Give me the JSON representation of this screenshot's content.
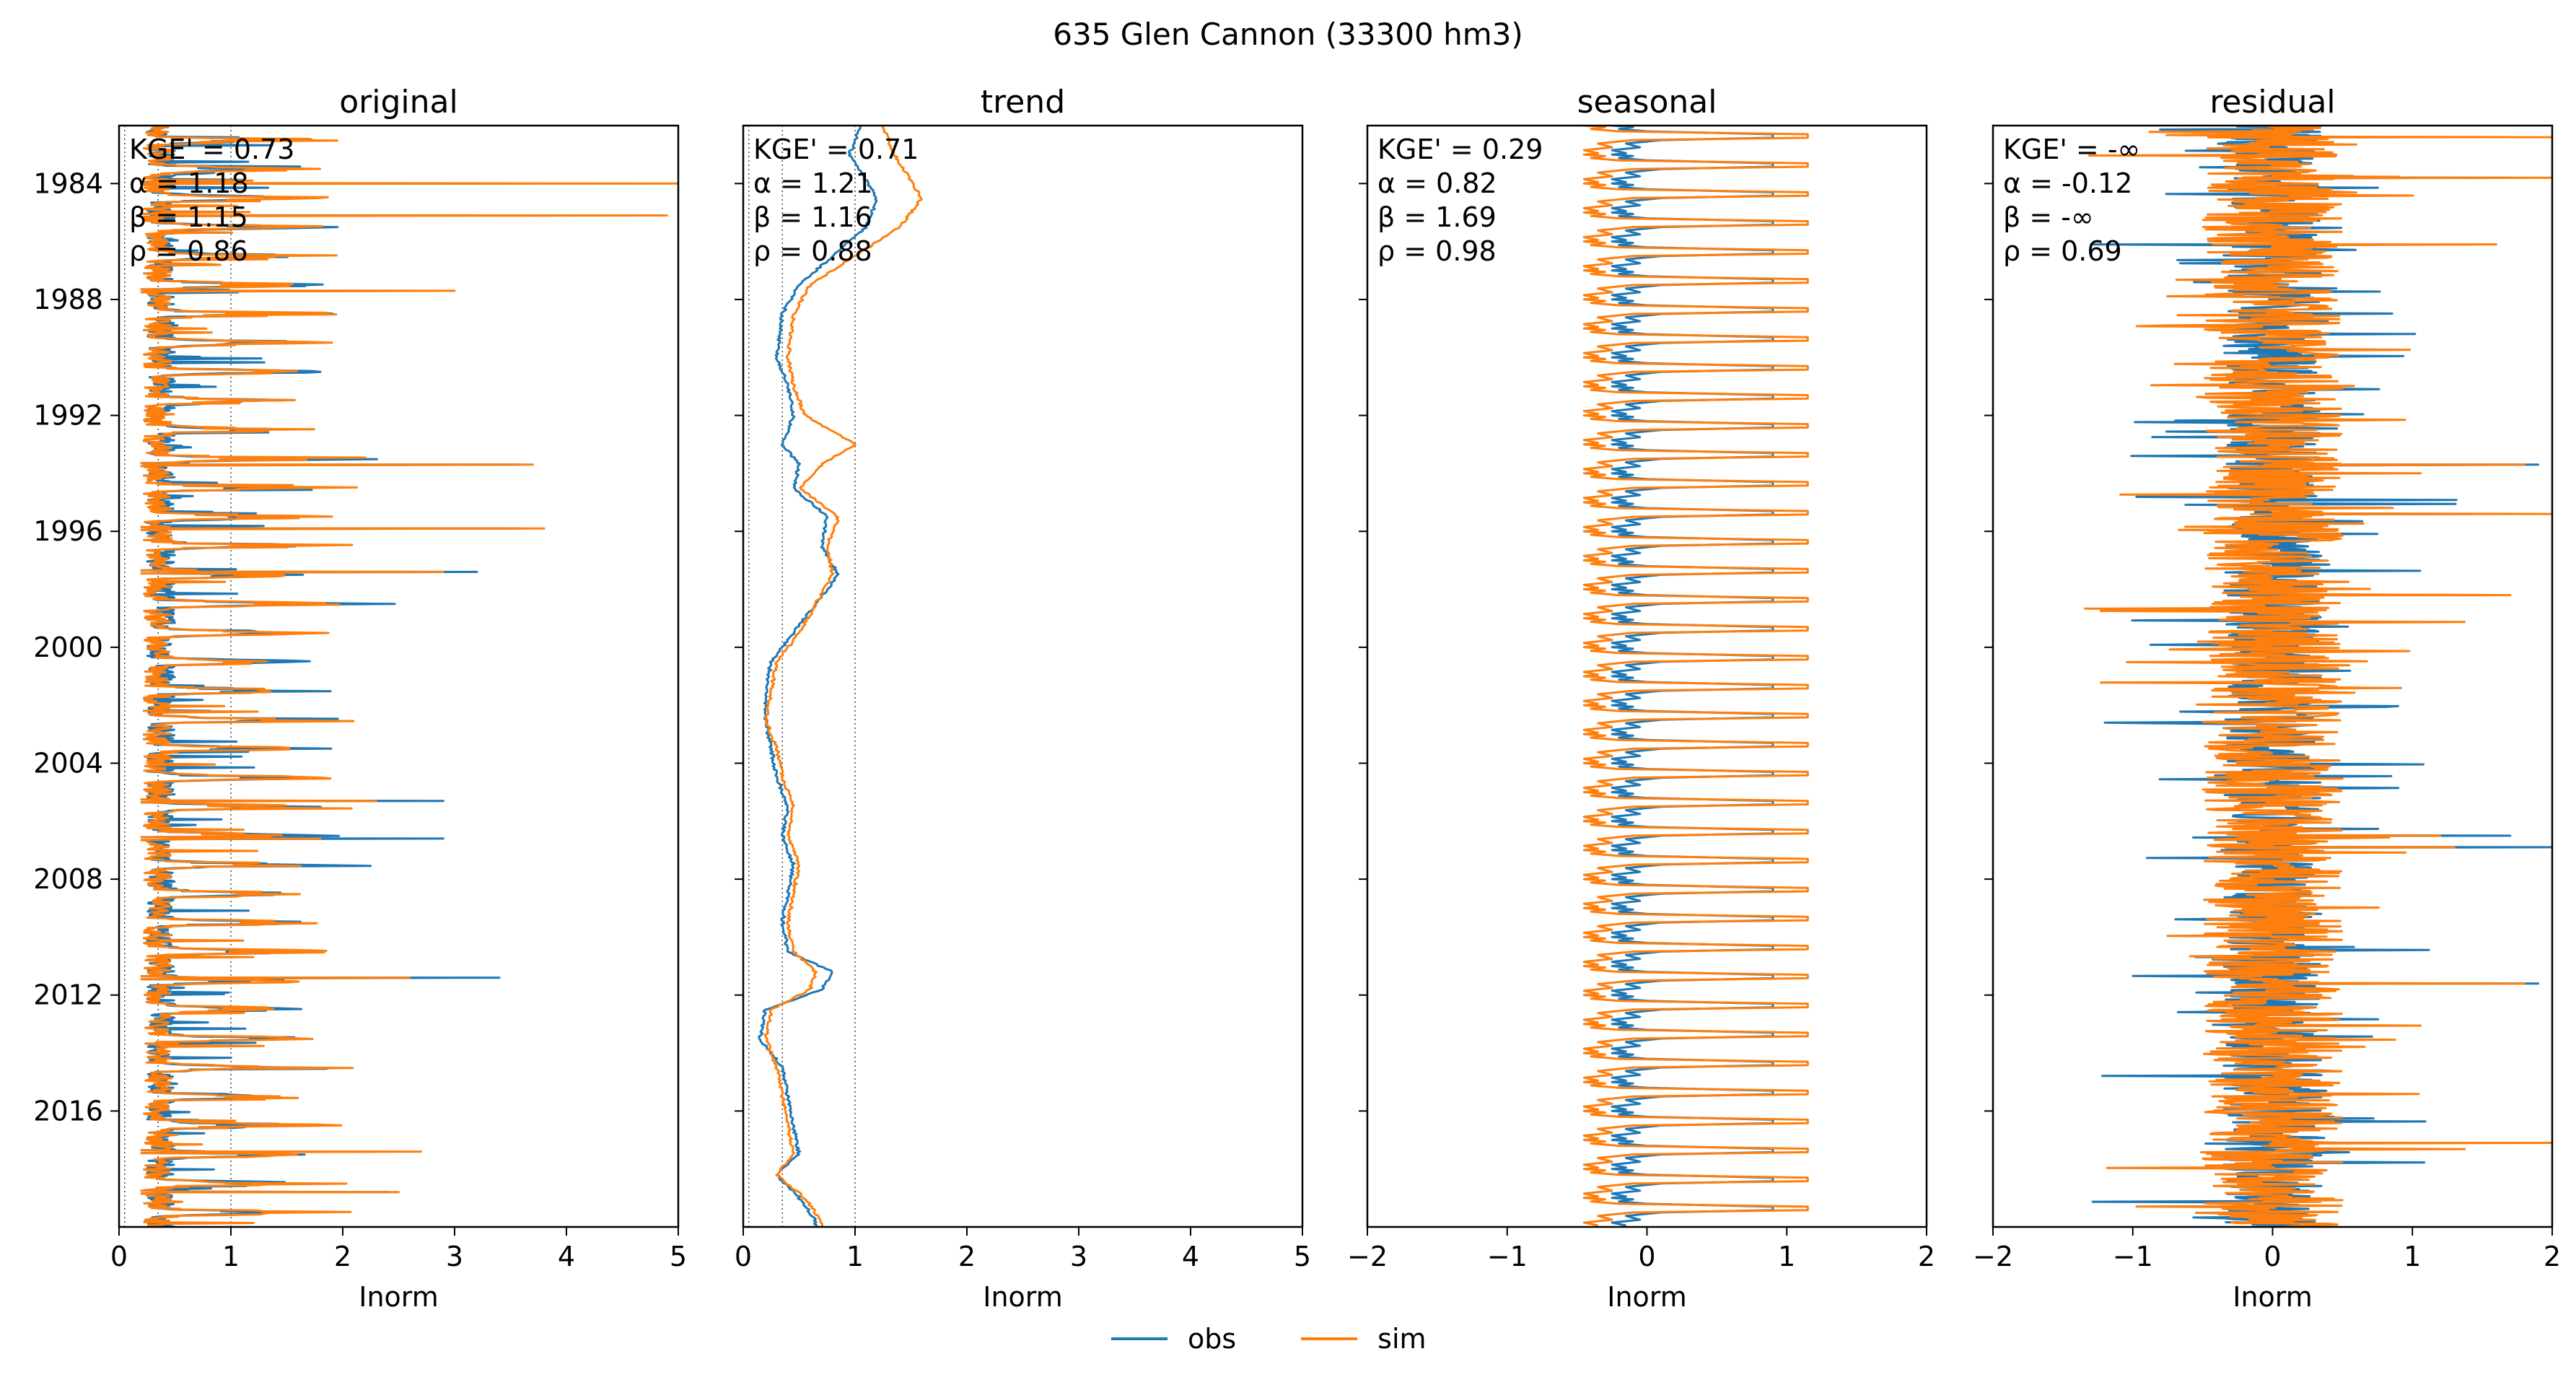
{
  "chart_data": {
    "type": "line",
    "suptitle": "635  Glen Cannon (33300 hm3)",
    "series_styles": [
      {
        "key": "obs",
        "name": "obs",
        "color": "#1f77b4"
      },
      {
        "key": "sim",
        "name": "sim",
        "color": "#ff7f0e"
      }
    ],
    "y_axis": {
      "type": "date",
      "ylim": [
        "1982-01-01",
        "2020-01-01"
      ],
      "inverted": true,
      "tick_values": [
        1984,
        1988,
        1992,
        1996,
        2000,
        2004,
        2008,
        2012,
        2016
      ],
      "tick_labels": [
        "1984",
        "1988",
        "1992",
        "1996",
        "2000",
        "2004",
        "2008",
        "2012",
        "2016"
      ]
    },
    "panels": [
      {
        "title": "original",
        "xlabel": "Inorm",
        "xlim": [
          0,
          5
        ],
        "xticks": [
          0,
          1,
          2,
          3,
          4,
          5
        ],
        "xtick_labels": [
          "0",
          "1",
          "2",
          "3",
          "4",
          "5"
        ],
        "reference_lines_x": [
          0.05,
          0.35,
          1.0
        ],
        "metrics": [
          "KGE' = 0.73",
          "α = 1.18",
          "β = 1.15",
          "ρ = 0.86"
        ],
        "style": "spiky-positive",
        "obs": {
          "base": 0.25,
          "scale": 0.9
        },
        "sim": {
          "base": 0.22,
          "scale": 1.05
        },
        "highlights_y": [
          1984.0,
          1985.1,
          1987.7,
          1993.7,
          1995.9,
          1997.4,
          2005.3,
          2006.6,
          2011.4,
          2017.4,
          2018.8
        ],
        "highlights": {
          "obs": [
            1.0,
            2.1,
            2.6,
            3.6,
            3.6,
            3.2,
            2.9,
            2.9,
            3.4,
            2.3,
            2.4
          ],
          "sim": [
            5.0,
            4.9,
            3.0,
            3.7,
            3.8,
            2.9,
            2.3,
            1.8,
            2.6,
            2.7,
            2.5
          ]
        }
      },
      {
        "title": "trend",
        "xlabel": "Inorm",
        "xlim": [
          0,
          5
        ],
        "xticks": [
          0,
          1,
          2,
          3,
          4,
          5
        ],
        "xtick_labels": [
          "0",
          "1",
          "2",
          "3",
          "4",
          "5"
        ],
        "reference_lines_x": [
          0.05,
          0.35,
          1.0
        ],
        "metrics": [
          "KGE' = 0.71",
          "α = 1.21",
          "β = 1.16",
          "ρ = 0.88"
        ],
        "style": "trend",
        "trend_y": [
          1982.0,
          1983.0,
          1984.5,
          1985.5,
          1986.5,
          1987.5,
          1988.5,
          1990.0,
          1991.0,
          1992.0,
          1993.0,
          1993.7,
          1994.5,
          1995.5,
          1996.5,
          1997.5,
          1998.5,
          1999.5,
          2000.5,
          2001.5,
          2002.5,
          2003.5,
          2004.5,
          2005.5,
          2006.5,
          2007.5,
          2008.5,
          2009.5,
          2010.5,
          2011.2,
          2011.8,
          2012.5,
          2013.5,
          2014.5,
          2015.5,
          2016.5,
          2017.5,
          2018.2,
          2019.0,
          2019.8
        ],
        "trend": {
          "obs": [
            1.05,
            0.95,
            1.2,
            1.1,
            0.8,
            0.5,
            0.35,
            0.3,
            0.4,
            0.45,
            0.35,
            0.5,
            0.45,
            0.75,
            0.7,
            0.85,
            0.65,
            0.45,
            0.25,
            0.2,
            0.2,
            0.25,
            0.3,
            0.4,
            0.35,
            0.45,
            0.4,
            0.35,
            0.4,
            0.8,
            0.7,
            0.2,
            0.15,
            0.35,
            0.4,
            0.45,
            0.5,
            0.3,
            0.5,
            0.65
          ],
          "sim": [
            1.25,
            1.35,
            1.6,
            1.4,
            1.0,
            0.6,
            0.45,
            0.4,
            0.45,
            0.55,
            1.0,
            0.7,
            0.5,
            0.85,
            0.75,
            0.8,
            0.65,
            0.5,
            0.3,
            0.25,
            0.2,
            0.3,
            0.35,
            0.45,
            0.4,
            0.5,
            0.45,
            0.4,
            0.45,
            0.65,
            0.6,
            0.25,
            0.2,
            0.3,
            0.35,
            0.4,
            0.45,
            0.3,
            0.55,
            0.7
          ]
        }
      },
      {
        "title": "seasonal",
        "xlabel": "Inorm",
        "xlim": [
          -2,
          2
        ],
        "xticks": [
          -2,
          -1,
          0,
          1,
          2
        ],
        "xtick_labels": [
          "−2",
          "−1",
          "0",
          "1",
          "2"
        ],
        "reference_lines_x": [],
        "metrics": [
          "KGE' = 0.29",
          "α = 0.82",
          "β = 1.69",
          "ρ = 0.98"
        ],
        "style": "seasonal",
        "seasonal_range": {
          "obs": [
            -0.25,
            0.9
          ],
          "sim": [
            -0.45,
            1.15
          ]
        }
      },
      {
        "title": "residual",
        "xlabel": "Inorm",
        "xlim": [
          -2,
          2
        ],
        "xticks": [
          -2,
          -1,
          0,
          1,
          2
        ],
        "xtick_labels": [
          "−2",
          "−1",
          "0",
          "1",
          "2"
        ],
        "reference_lines_x": [],
        "metrics": [
          "KGE' = -∞",
          "α = -0.12",
          "β = -∞",
          "ρ = 0.69"
        ],
        "style": "residual",
        "obs": {
          "scale": 0.35
        },
        "sim": {
          "scale": 0.5
        },
        "highlights_y": [
          1982.4,
          1983.8,
          1986.1,
          1993.7,
          1995.4,
          1998.2,
          2006.5,
          2006.9,
          2011.6,
          2017.1
        ],
        "highlights": {
          "obs": [
            0.9,
            1.7,
            -1.3,
            1.9,
            1.4,
            1.5,
            1.7,
            2.0,
            1.9,
            0.9
          ],
          "sim": [
            2.0,
            2.0,
            1.6,
            1.8,
            2.0,
            1.7,
            1.2,
            1.3,
            1.8,
            2.0
          ]
        }
      }
    ]
  }
}
